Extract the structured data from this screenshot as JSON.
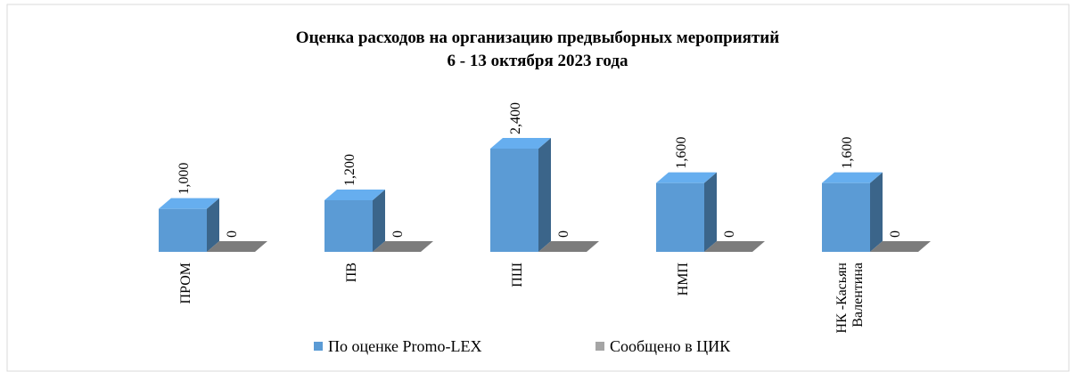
{
  "chart_data": {
    "type": "bar3d",
    "title": "Оценка расходов на организацию предвыборных мероприятий",
    "subtitle": "6 - 13 октября 2023 года",
    "categories": [
      "ПРОМ",
      "ПВ",
      "ПШ",
      "НМП",
      "НК -Касьян Валентина"
    ],
    "series": [
      {
        "name": "По оценке Promo-LEX",
        "color": "#5b9bd5",
        "values": [
          1000,
          1200,
          2400,
          1600,
          1600
        ],
        "value_labels": [
          "1,000",
          "1,200",
          "2,400",
          "1,600",
          "1,600"
        ]
      },
      {
        "name": "Сообщено в ЦИК",
        "color": "#a5a5a5",
        "values": [
          0,
          0,
          0,
          0,
          0
        ]
      }
    ],
    "legend": "bottom"
  }
}
